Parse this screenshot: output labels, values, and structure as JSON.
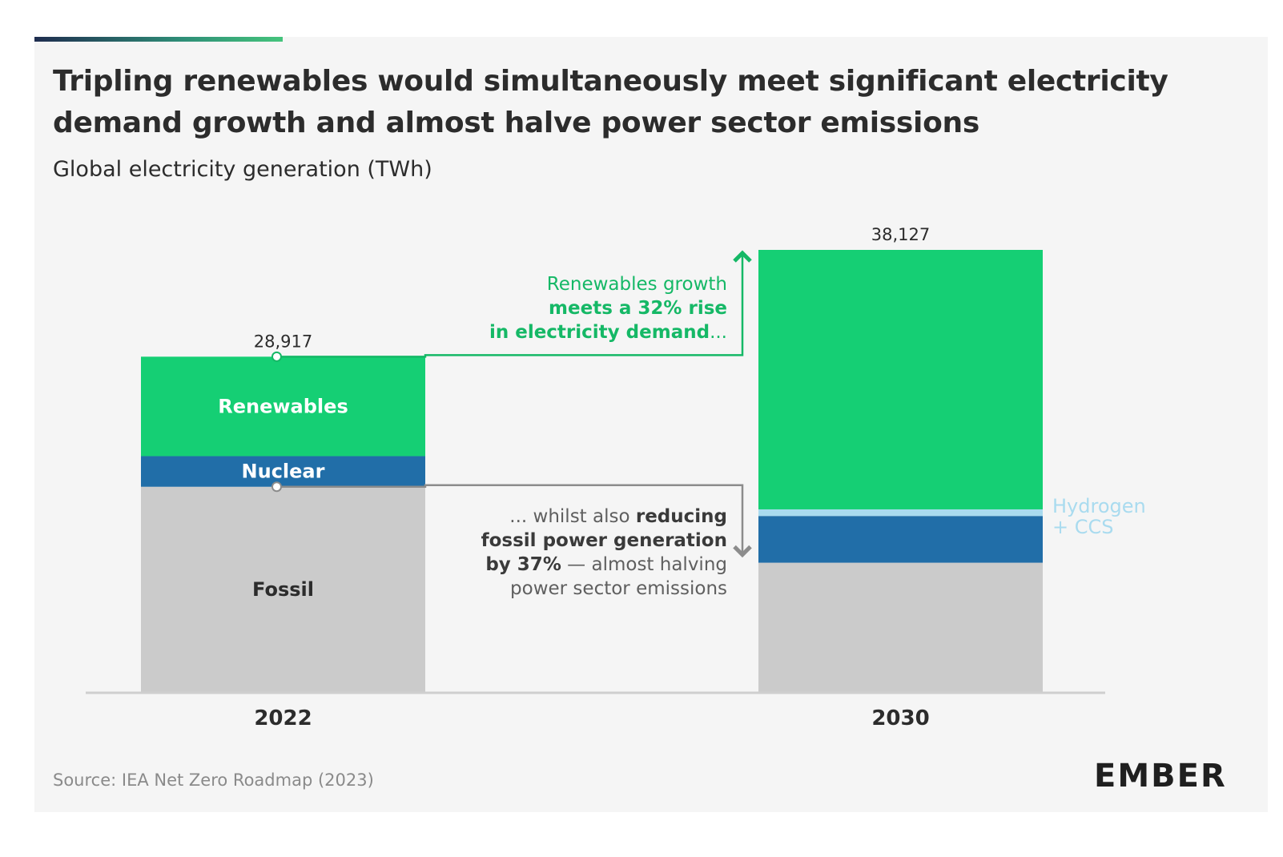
{
  "title": "Tripling renewables would simultaneously meet significant electricity demand growth and almost halve power sector emissions",
  "subtitle": "Global electricity generation (TWh)",
  "source": "Source: IEA Net Zero Roadmap (2023)",
  "logo": "EMBER",
  "colors": {
    "renewables": "#15cf74",
    "nuclear": "#216ea8",
    "hydrogen_ccs": "#a9dbef",
    "fossil": "#cbcbcb",
    "annotation_green": "#15b866",
    "annotation_gray": "#5f5f5f",
    "axis": "#cfcfcf"
  },
  "chart_data": {
    "type": "bar",
    "stacked": true,
    "title": "Tripling renewables would simultaneously meet significant electricity demand growth and almost halve power sector emissions",
    "ylabel": "Global electricity generation (TWh)",
    "categories": [
      "2022",
      "2030"
    ],
    "totals": [
      "28,917",
      "38,127"
    ],
    "total_values": [
      28917,
      38127
    ],
    "series": [
      {
        "name": "Fossil",
        "label": "Fossil",
        "values": [
          17700,
          11150
        ]
      },
      {
        "name": "Nuclear",
        "label": "Nuclear",
        "values": [
          2640,
          4030
        ]
      },
      {
        "name": "Hydrogen + CCS",
        "label": "Hydrogen\n+ CCS",
        "label_lines": [
          "Hydrogen",
          "+ CCS"
        ],
        "values": [
          0,
          570
        ]
      },
      {
        "name": "Renewables",
        "label": "Renewables",
        "values": [
          8577,
          22377
        ]
      }
    ],
    "segment_labels_shown_on": "2022",
    "annotations": [
      {
        "id": "renewables-growth",
        "lines": [
          [
            {
              "text": "Renewables growth",
              "bold": false
            }
          ],
          [
            {
              "text": "meets a 32% rise",
              "bold": true
            }
          ],
          [
            {
              "text": "in electricity demand",
              "bold": true
            },
            {
              "text": "...",
              "bold": false
            }
          ]
        ]
      },
      {
        "id": "fossil-reduction",
        "lines": [
          [
            {
              "text": "... whilst also ",
              "bold": false
            },
            {
              "text": "reducing",
              "bold": true
            }
          ],
          [
            {
              "text": "fossil power generation",
              "bold": true
            }
          ],
          [
            {
              "text": "by 37%",
              "bold": true
            },
            {
              "text": " — almost halving",
              "bold": false
            }
          ],
          [
            {
              "text": "power sector emissions",
              "bold": false
            }
          ]
        ]
      }
    ],
    "xlabel": "",
    "grid": false
  }
}
